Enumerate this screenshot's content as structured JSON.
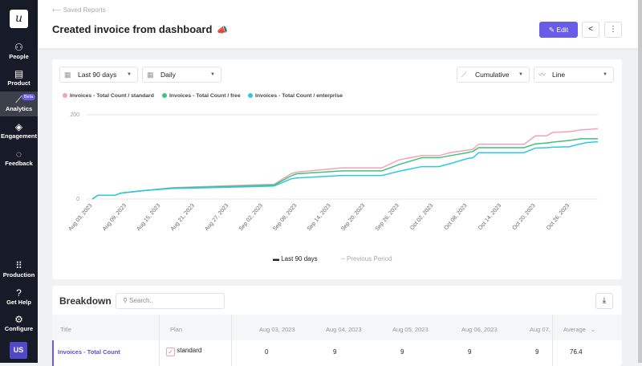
{
  "sidebar": {
    "logo": "u",
    "items": [
      {
        "label": "People",
        "icon": "people-icon"
      },
      {
        "label": "Product",
        "icon": "product-icon"
      },
      {
        "label": "Analytics",
        "icon": "analytics-icon",
        "badge": "Beta",
        "active": true
      },
      {
        "label": "Engagement",
        "icon": "layers-icon"
      },
      {
        "label": "Feedback",
        "icon": "chat-icon"
      }
    ],
    "bottom": [
      {
        "label": "Production",
        "icon": "grid-icon"
      },
      {
        "label": "Get Help",
        "icon": "help-icon"
      },
      {
        "label": "Configure",
        "icon": "gear-icon"
      }
    ],
    "avatar": "US"
  },
  "header": {
    "back": "Saved Reports",
    "title": "Created invoice from dashboard",
    "edit": "Edit"
  },
  "filters": {
    "range": "Last 90 days",
    "interval": "Daily",
    "mode": "Cumulative",
    "chart_type": "Line"
  },
  "chart_data": {
    "type": "line",
    "ylim": [
      0,
      200
    ],
    "yticks": [
      "0",
      "200"
    ],
    "grid": true,
    "legend": "top-left",
    "xticks": [
      "Aug 03, 2023",
      "Aug 09, 2023",
      "Aug 15, 2023",
      "Aug 21, 2023",
      "Aug 27, 2023",
      "Sep 02, 2023",
      "Sep 08, 2023",
      "Sep 14, 2023",
      "Sep 20, 2023",
      "Sep 26, 2023",
      "Oct 02, 2023",
      "Oct 08, 2023",
      "Oct 14, 2023",
      "Oct 20, 2023",
      "Oct 26, 2023"
    ],
    "xrange": [
      "Aug 03, 2023",
      "Oct 31, 2023"
    ],
    "x": [
      "Aug 03, 2023",
      "Aug 04, 2023",
      "Aug 07, 2023",
      "Aug 08, 2023",
      "Aug 12, 2023",
      "Aug 17, 2023",
      "Aug 30, 2023",
      "Sep 04, 2023",
      "Sep 07, 2023",
      "Sep 08, 2023",
      "Sep 16, 2023",
      "Sep 23, 2023",
      "Sep 26, 2023",
      "Sep 30, 2023",
      "Oct 03, 2023",
      "Oct 05, 2023",
      "Oct 08, 2023",
      "Oct 09, 2023",
      "Oct 10, 2023",
      "Oct 18, 2023",
      "Oct 20, 2023",
      "Oct 22, 2023",
      "Oct 23, 2023",
      "Oct 26, 2023",
      "Oct 27, 2023",
      "Oct 28, 2023",
      "Oct 29, 2023",
      "Oct 31, 2023"
    ],
    "series": [
      {
        "name": "Invoices - Total Count / standard",
        "color": "#f4a3b4",
        "values": [
          0,
          9,
          9,
          14,
          20,
          27,
          33,
          35,
          60,
          64,
          74,
          74,
          93,
          103,
          103,
          110,
          116,
          118,
          130,
          130,
          150,
          150,
          158,
          160,
          162,
          164,
          165,
          167
        ]
      },
      {
        "name": "Invoices - Total Count / free",
        "color": "#3cc47c",
        "values": [
          0,
          9,
          9,
          14,
          20,
          26,
          31,
          33,
          55,
          60,
          67,
          67,
          82,
          98,
          98,
          103,
          110,
          113,
          122,
          122,
          131,
          133,
          135,
          139,
          141,
          143,
          143,
          143
        ]
      },
      {
        "name": "Invoices - Total Count / enterprise",
        "color": "#2ec9e0",
        "values": [
          0,
          9,
          9,
          14,
          20,
          25,
          29,
          31,
          48,
          50,
          56,
          56,
          66,
          77,
          77,
          84,
          96,
          98,
          110,
          110,
          121,
          122,
          123,
          124,
          128,
          131,
          134,
          136
        ]
      }
    ],
    "period_legend": [
      "Last 90 days",
      "Previous Period"
    ]
  },
  "breakdown": {
    "title": "Breakdown",
    "search_placeholder": "Search..",
    "columns": [
      "Title",
      "Plan",
      "Aug 03, 2023",
      "Aug 04, 2023",
      "Aug 05, 2023",
      "Aug 06, 2023",
      "Aug 07,",
      "Average"
    ],
    "rows": [
      {
        "title": "Invoices - Total Count",
        "plan": "standard",
        "values": [
          "0",
          "9",
          "9",
          "9",
          "9"
        ],
        "average": "76.4"
      }
    ]
  }
}
